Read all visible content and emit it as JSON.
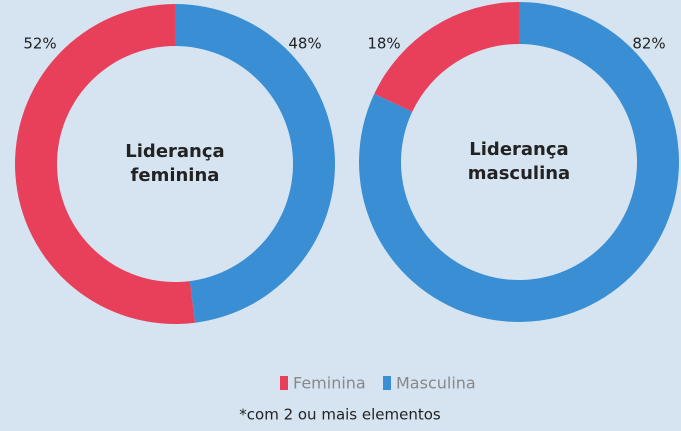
{
  "chart_data": [
    {
      "type": "pie",
      "title": "Liderança feminina",
      "categories": [
        "Feminina",
        "Masculina"
      ],
      "values": [
        52,
        48
      ],
      "value_labels": [
        "52%",
        "48%"
      ],
      "colors": [
        "#e8405a",
        "#3a8fd4"
      ]
    },
    {
      "type": "pie",
      "title": "Liderança masculina",
      "categories": [
        "Feminina",
        "Masculina"
      ],
      "values": [
        18,
        82
      ],
      "value_labels": [
        "18%",
        "82%"
      ],
      "colors": [
        "#e8405a",
        "#3a8fd4"
      ]
    }
  ],
  "footnote": "*com 2 ou mais elementos"
}
